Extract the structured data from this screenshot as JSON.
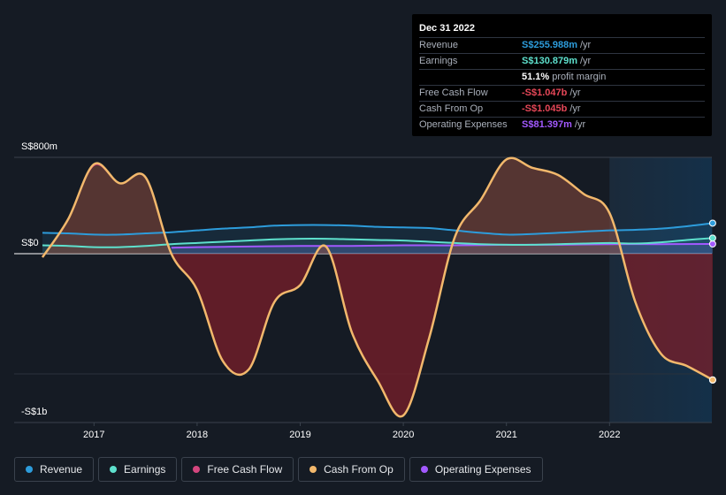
{
  "tooltip": {
    "date": "Dec 31 2022",
    "rows": [
      {
        "label": "Revenue",
        "value": "S$255.988m",
        "suffix": "/yr",
        "color": "#2d9cdb"
      },
      {
        "label": "Earnings",
        "value": "S$130.879m",
        "suffix": "/yr",
        "color": "#5ee0cd"
      },
      {
        "label": "",
        "value": "51.1%",
        "suffix": "profit margin",
        "color": "#ffffff"
      },
      {
        "label": "Free Cash Flow",
        "value": "-S$1.047b",
        "suffix": "/yr",
        "color": "#e64758"
      },
      {
        "label": "Cash From Op",
        "value": "-S$1.045b",
        "suffix": "/yr",
        "color": "#e64758"
      },
      {
        "label": "Operating Expenses",
        "value": "S$81.397m",
        "suffix": "/yr",
        "color": "#a259ff"
      }
    ]
  },
  "legend": [
    {
      "label": "Revenue",
      "color": "#2d9cdb"
    },
    {
      "label": "Earnings",
      "color": "#5ee0cd"
    },
    {
      "label": "Free Cash Flow",
      "color": "#d4467e"
    },
    {
      "label": "Cash From Op",
      "color": "#f2b86c"
    },
    {
      "label": "Operating Expenses",
      "color": "#a259ff"
    }
  ],
  "chart_data": {
    "type": "area",
    "title": "",
    "xlabel": "",
    "ylabel": "",
    "y_axis_labels": {
      "top": "S$800m",
      "zero": "S$0",
      "bottom": "-S$1b"
    },
    "xlim": [
      2016.5,
      2023.0
    ],
    "ylim": [
      -1000,
      800
    ],
    "x_ticks": [
      2017,
      2018,
      2019,
      2020,
      2021,
      2022
    ],
    "x_tick_labels": [
      "2017",
      "2018",
      "2019",
      "2020",
      "2021",
      "2022"
    ],
    "forecast_start": 2022.0,
    "highlight_date": "Dec 31 2022",
    "series": [
      {
        "name": "Revenue",
        "color": "#2d9cdb",
        "points": [
          [
            2016.5,
            175
          ],
          [
            2016.75,
            170
          ],
          [
            2017.0,
            160
          ],
          [
            2017.25,
            160
          ],
          [
            2017.5,
            170
          ],
          [
            2017.75,
            180
          ],
          [
            2018.0,
            195
          ],
          [
            2018.25,
            210
          ],
          [
            2018.5,
            220
          ],
          [
            2018.75,
            235
          ],
          [
            2019.0,
            240
          ],
          [
            2019.25,
            240
          ],
          [
            2019.5,
            235
          ],
          [
            2019.75,
            225
          ],
          [
            2020.0,
            220
          ],
          [
            2020.25,
            215
          ],
          [
            2020.5,
            195
          ],
          [
            2020.75,
            175
          ],
          [
            2021.0,
            160
          ],
          [
            2021.25,
            165
          ],
          [
            2021.5,
            175
          ],
          [
            2021.75,
            185
          ],
          [
            2022.0,
            195
          ],
          [
            2022.25,
            200
          ],
          [
            2022.5,
            210
          ],
          [
            2022.75,
            230
          ],
          [
            2023.0,
            256
          ]
        ]
      },
      {
        "name": "Earnings",
        "color": "#5ee0cd",
        "points": [
          [
            2016.5,
            70
          ],
          [
            2016.75,
            65
          ],
          [
            2017.0,
            55
          ],
          [
            2017.25,
            55
          ],
          [
            2017.5,
            65
          ],
          [
            2017.75,
            80
          ],
          [
            2018.0,
            90
          ],
          [
            2018.25,
            100
          ],
          [
            2018.5,
            110
          ],
          [
            2018.75,
            120
          ],
          [
            2019.0,
            125
          ],
          [
            2019.25,
            125
          ],
          [
            2019.5,
            120
          ],
          [
            2019.75,
            115
          ],
          [
            2020.0,
            110
          ],
          [
            2020.25,
            100
          ],
          [
            2020.5,
            90
          ],
          [
            2020.75,
            80
          ],
          [
            2021.0,
            75
          ],
          [
            2021.25,
            75
          ],
          [
            2021.5,
            80
          ],
          [
            2021.75,
            85
          ],
          [
            2022.0,
            90
          ],
          [
            2022.25,
            85
          ],
          [
            2022.5,
            95
          ],
          [
            2022.75,
            115
          ],
          [
            2023.0,
            131
          ]
        ]
      },
      {
        "name": "Free Cash Flow",
        "color": "#d4467e",
        "points": [
          [
            2016.5,
            -30
          ],
          [
            2016.75,
            290
          ],
          [
            2017.0,
            740
          ],
          [
            2017.25,
            590
          ],
          [
            2017.5,
            640
          ],
          [
            2017.75,
            0
          ],
          [
            2018.0,
            -300
          ],
          [
            2018.25,
            -890
          ],
          [
            2018.5,
            -960
          ],
          [
            2018.75,
            -400
          ],
          [
            2019.0,
            -260
          ],
          [
            2019.25,
            60
          ],
          [
            2019.5,
            -650
          ],
          [
            2019.75,
            -1050
          ],
          [
            2020.0,
            -1340
          ],
          [
            2020.25,
            -700
          ],
          [
            2020.5,
            140
          ],
          [
            2020.75,
            450
          ],
          [
            2021.0,
            790
          ],
          [
            2021.25,
            720
          ],
          [
            2021.5,
            660
          ],
          [
            2021.75,
            500
          ],
          [
            2022.0,
            340
          ],
          [
            2022.25,
            -400
          ],
          [
            2022.5,
            -830
          ],
          [
            2022.75,
            -930
          ],
          [
            2023.0,
            -1047
          ]
        ]
      },
      {
        "name": "Cash From Op",
        "color": "#f2b86c",
        "points": [
          [
            2016.5,
            -30
          ],
          [
            2016.75,
            290
          ],
          [
            2017.0,
            750
          ],
          [
            2017.25,
            590
          ],
          [
            2017.5,
            640
          ],
          [
            2017.75,
            0
          ],
          [
            2018.0,
            -300
          ],
          [
            2018.25,
            -890
          ],
          [
            2018.5,
            -960
          ],
          [
            2018.75,
            -400
          ],
          [
            2019.0,
            -260
          ],
          [
            2019.25,
            60
          ],
          [
            2019.5,
            -650
          ],
          [
            2019.75,
            -1050
          ],
          [
            2020.0,
            -1340
          ],
          [
            2020.25,
            -700
          ],
          [
            2020.5,
            140
          ],
          [
            2020.75,
            450
          ],
          [
            2021.0,
            790
          ],
          [
            2021.25,
            720
          ],
          [
            2021.5,
            660
          ],
          [
            2021.75,
            500
          ],
          [
            2022.0,
            340
          ],
          [
            2022.25,
            -400
          ],
          [
            2022.5,
            -830
          ],
          [
            2022.75,
            -930
          ],
          [
            2023.0,
            -1045
          ]
        ]
      },
      {
        "name": "Operating Expenses",
        "color": "#a259ff",
        "points": [
          [
            2017.75,
            50
          ],
          [
            2018.0,
            55
          ],
          [
            2018.5,
            60
          ],
          [
            2019.0,
            65
          ],
          [
            2019.5,
            65
          ],
          [
            2020.0,
            70
          ],
          [
            2020.5,
            70
          ],
          [
            2021.0,
            75
          ],
          [
            2021.5,
            75
          ],
          [
            2022.0,
            80
          ],
          [
            2022.5,
            80
          ],
          [
            2023.0,
            81.4
          ]
        ]
      }
    ]
  }
}
